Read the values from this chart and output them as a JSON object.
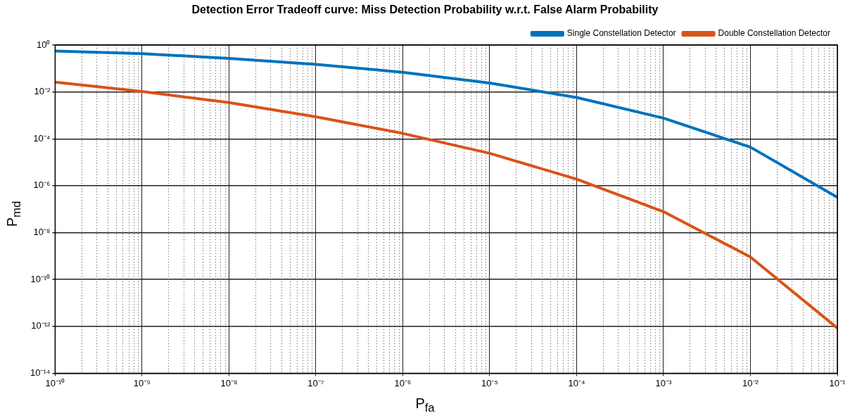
{
  "chart_data": {
    "type": "line",
    "title": "Detection Error Tradeoff curve: Miss Detection Probability w.r.t. False Alarm Probability",
    "xlabel": "P$_{fa}$",
    "ylabel": "P$_{md}$",
    "log": "xy",
    "grid": true,
    "legend": "top right",
    "line_style": "solid",
    "marker": "none",
    "x": [
      1e-10,
      1e-09,
      1e-08,
      1e-07,
      1e-06,
      1e-05,
      0.0001,
      0.001,
      0.01,
      0.1
    ],
    "xlim": [
      1e-10,
      0.1
    ],
    "ylim": [
      1e-14,
      1
    ],
    "xticks": [
      {
        "value": 1e-10,
        "label": "10⁻¹⁰"
      },
      {
        "value": 1e-09,
        "label": "10⁻⁹"
      },
      {
        "value": 1e-08,
        "label": "10⁻⁸"
      },
      {
        "value": 1e-07,
        "label": "10⁻⁷"
      },
      {
        "value": 1e-06,
        "label": "10⁻⁶"
      },
      {
        "value": 1e-05,
        "label": "10⁻⁵"
      },
      {
        "value": 0.0001,
        "label": "10⁻⁴"
      },
      {
        "value": 0.001,
        "label": "10⁻³"
      },
      {
        "value": 0.01,
        "label": "10⁻²"
      },
      {
        "value": 0.1,
        "label": "10⁻¹"
      }
    ],
    "yticks": [
      {
        "value": 1e-14,
        "label": "10⁻¹⁴"
      },
      {
        "value": 1e-12,
        "label": "10⁻¹²"
      },
      {
        "value": 1e-10,
        "label": "10⁻¹⁰"
      },
      {
        "value": 1e-08,
        "label": "10⁻⁸"
      },
      {
        "value": 1e-06,
        "label": "10⁻⁶"
      },
      {
        "value": 0.0001,
        "label": "10⁻⁴"
      },
      {
        "value": 0.01,
        "label": "10⁻²"
      },
      {
        "value": 1,
        "label": "10⁰"
      }
    ],
    "series": [
      {
        "name": "Single Constellation Detector",
        "color": "#0072bd",
        "values": [
          0.56,
          0.43,
          0.27,
          0.15,
          0.069,
          0.024,
          0.0058,
          0.00076,
          4.4e-05,
          3.2e-07
        ]
      },
      {
        "name": "Double Constellation Detector",
        "color": "#d95319",
        "values": [
          0.026,
          0.0104,
          0.0035,
          0.00087,
          0.00017,
          2.4e-05,
          1.9e-06,
          7.8e-08,
          9.1e-10,
          8.5e-13
        ]
      }
    ]
  }
}
